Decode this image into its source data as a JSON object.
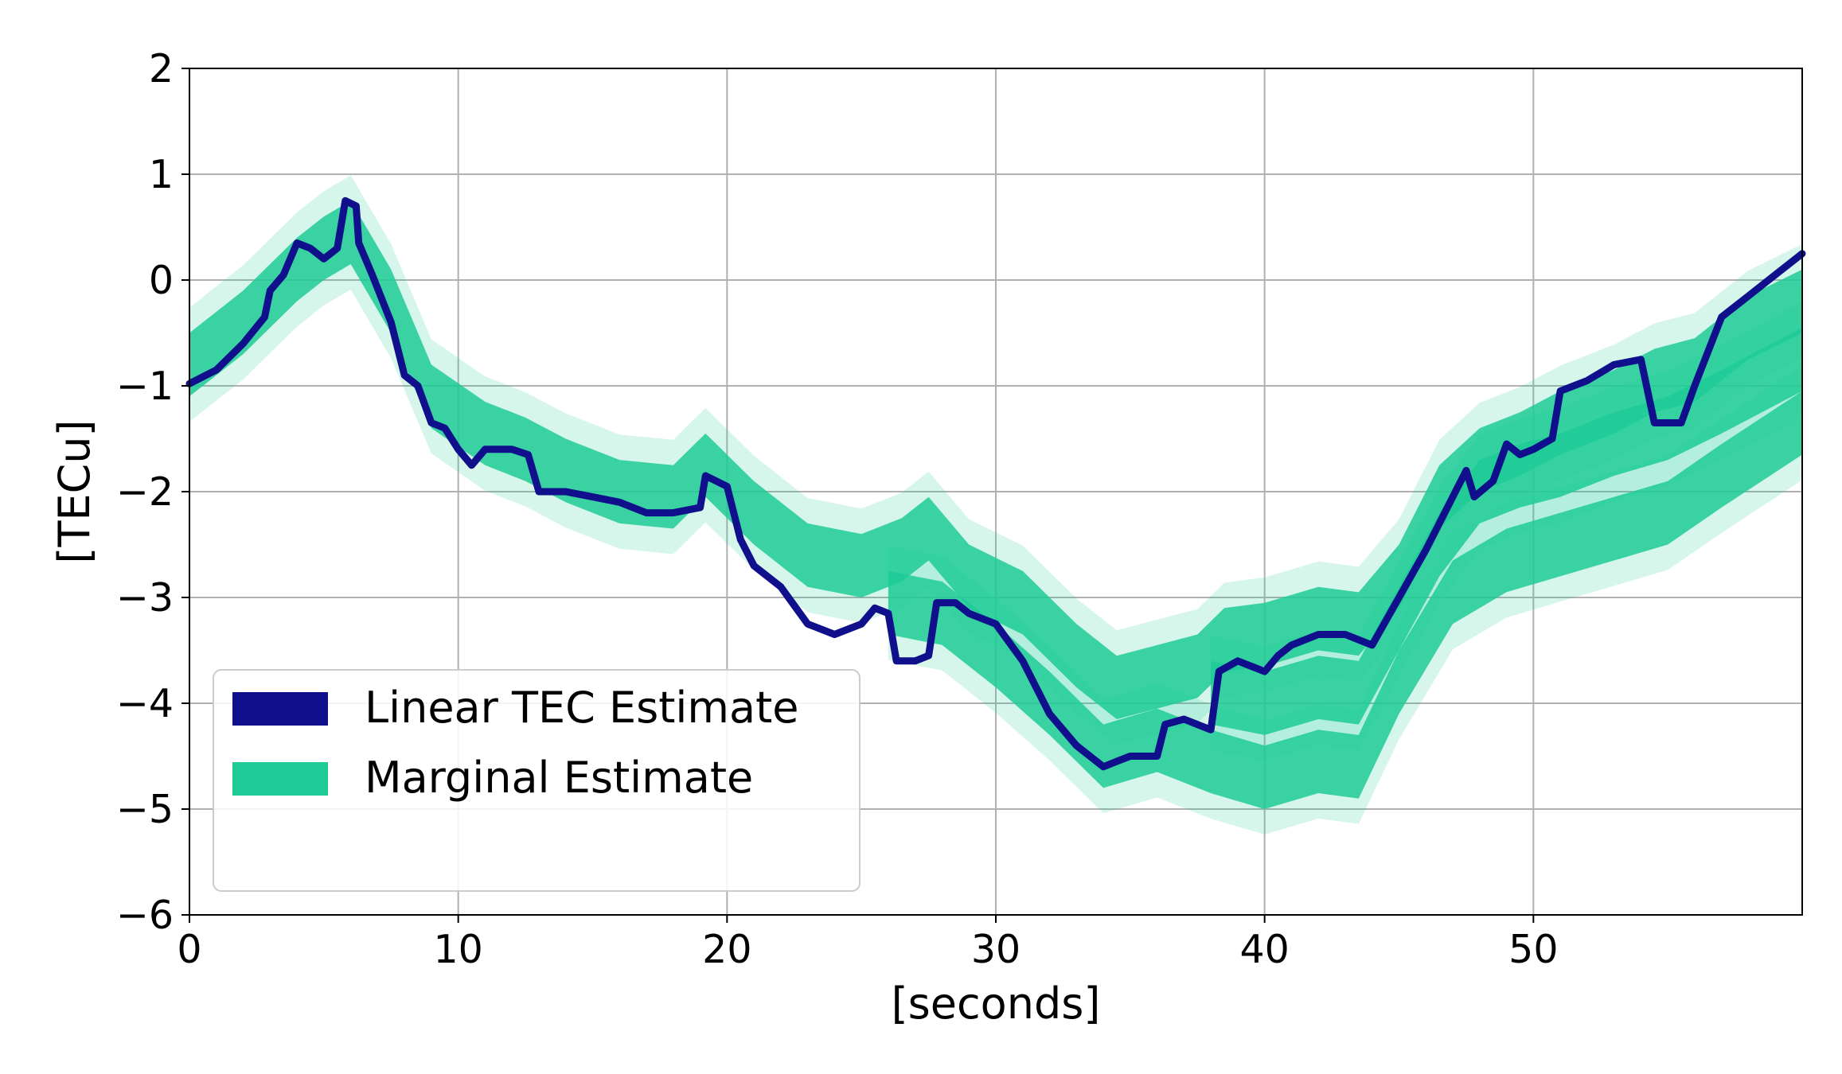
{
  "chart_data": {
    "type": "line",
    "title": "",
    "xlabel": "[seconds]",
    "ylabel": "[TECu]",
    "xlim": [
      0,
      60
    ],
    "ylim": [
      -6,
      2
    ],
    "grid": true,
    "x_ticks": [
      0,
      10,
      20,
      30,
      40,
      50
    ],
    "x_tick_labels": [
      "0",
      "10",
      "20",
      "30",
      "40",
      "50"
    ],
    "y_ticks": [
      2,
      1,
      0,
      -1,
      -2,
      -3,
      -4,
      -5,
      -6
    ],
    "y_tick_labels": [
      "2",
      "1",
      "0",
      "−1",
      "−2",
      "−3",
      "−4",
      "−5",
      "−6"
    ],
    "legend": {
      "placement": "lower-left",
      "entries": [
        {
          "label": "Linear TEC Estimate",
          "color": "#10108c"
        },
        {
          "label": "Marginal Estimate",
          "color": "#1ecb97"
        }
      ]
    },
    "series": [
      {
        "name": "Linear TEC Estimate",
        "color": "#10108c",
        "points": [
          [
            0,
            -0.98
          ],
          [
            1,
            -0.85
          ],
          [
            2,
            -0.6
          ],
          [
            2.8,
            -0.35
          ],
          [
            3,
            -0.1
          ],
          [
            3.5,
            0.05
          ],
          [
            4,
            0.35
          ],
          [
            4.5,
            0.3
          ],
          [
            5,
            0.2
          ],
          [
            5.5,
            0.3
          ],
          [
            5.8,
            0.75
          ],
          [
            6.2,
            0.7
          ],
          [
            6.3,
            0.35
          ],
          [
            6.8,
            0.05
          ],
          [
            7.5,
            -0.4
          ],
          [
            8,
            -0.9
          ],
          [
            8.5,
            -1.0
          ],
          [
            9,
            -1.35
          ],
          [
            9.5,
            -1.4
          ],
          [
            10,
            -1.6
          ],
          [
            10.5,
            -1.75
          ],
          [
            11,
            -1.6
          ],
          [
            12,
            -1.6
          ],
          [
            12.6,
            -1.65
          ],
          [
            13,
            -2.0
          ],
          [
            14,
            -2.0
          ],
          [
            15,
            -2.05
          ],
          [
            16,
            -2.1
          ],
          [
            17,
            -2.2
          ],
          [
            18,
            -2.2
          ],
          [
            19,
            -2.15
          ],
          [
            19.2,
            -1.85
          ],
          [
            20,
            -1.95
          ],
          [
            20.5,
            -2.45
          ],
          [
            21,
            -2.7
          ],
          [
            22,
            -2.9
          ],
          [
            23,
            -3.25
          ],
          [
            24,
            -3.35
          ],
          [
            25,
            -3.25
          ],
          [
            25.5,
            -3.1
          ],
          [
            26,
            -3.15
          ],
          [
            26.3,
            -3.6
          ],
          [
            27,
            -3.6
          ],
          [
            27.5,
            -3.55
          ],
          [
            27.8,
            -3.05
          ],
          [
            28.5,
            -3.05
          ],
          [
            29,
            -3.15
          ],
          [
            30,
            -3.25
          ],
          [
            31,
            -3.6
          ],
          [
            32,
            -4.1
          ],
          [
            33,
            -4.4
          ],
          [
            34,
            -4.6
          ],
          [
            34.5,
            -4.55
          ],
          [
            35,
            -4.5
          ],
          [
            36,
            -4.5
          ],
          [
            36.3,
            -4.2
          ],
          [
            37,
            -4.15
          ],
          [
            38,
            -4.25
          ],
          [
            38.3,
            -3.7
          ],
          [
            39,
            -3.6
          ],
          [
            40,
            -3.7
          ],
          [
            40.5,
            -3.55
          ],
          [
            41,
            -3.45
          ],
          [
            42,
            -3.35
          ],
          [
            43,
            -3.35
          ],
          [
            44,
            -3.45
          ],
          [
            45,
            -3.0
          ],
          [
            46,
            -2.55
          ],
          [
            47,
            -2.05
          ],
          [
            47.5,
            -1.8
          ],
          [
            47.8,
            -2.05
          ],
          [
            48.5,
            -1.9
          ],
          [
            49,
            -1.55
          ],
          [
            49.5,
            -1.65
          ],
          [
            50,
            -1.6
          ],
          [
            50.7,
            -1.5
          ],
          [
            51,
            -1.05
          ],
          [
            52,
            -0.95
          ],
          [
            53,
            -0.8
          ],
          [
            54,
            -0.75
          ],
          [
            54.5,
            -1.35
          ],
          [
            55.5,
            -1.35
          ],
          [
            56,
            -1.0
          ],
          [
            57,
            -0.35
          ],
          [
            58,
            -0.15
          ],
          [
            59,
            0.05
          ],
          [
            60,
            0.25
          ]
        ]
      },
      {
        "name": "Marginal Estimate",
        "color": "#1ecb97",
        "bands": [
          {
            "center": [
              [
                0,
                -0.8
              ],
              [
                2,
                -0.4
              ],
              [
                4,
                0.1
              ],
              [
                5,
                0.3
              ],
              [
                6,
                0.45
              ],
              [
                7.5,
                -0.2
              ],
              [
                9,
                -1.1
              ],
              [
                11,
                -1.45
              ],
              [
                12.5,
                -1.6
              ],
              [
                14,
                -1.8
              ],
              [
                16,
                -2.0
              ],
              [
                18,
                -2.05
              ],
              [
                19.2,
                -1.75
              ],
              [
                21,
                -2.2
              ],
              [
                23,
                -2.6
              ],
              [
                25,
                -2.7
              ],
              [
                26.5,
                -2.55
              ],
              [
                27.5,
                -2.35
              ],
              [
                29,
                -2.8
              ],
              [
                31,
                -3.05
              ],
              [
                33,
                -3.55
              ],
              [
                34.5,
                -3.85
              ],
              [
                36,
                -3.75
              ],
              [
                37.5,
                -3.65
              ],
              [
                38.5,
                -3.4
              ],
              [
                40,
                -3.35
              ],
              [
                42,
                -3.2
              ],
              [
                43.5,
                -3.25
              ],
              [
                45,
                -2.8
              ],
              [
                46.5,
                -2.05
              ],
              [
                48,
                -1.7
              ],
              [
                49.5,
                -1.55
              ],
              [
                51,
                -1.35
              ],
              [
                53,
                -1.15
              ],
              [
                54.5,
                -0.95
              ],
              [
                56,
                -0.85
              ],
              [
                58,
                -0.45
              ],
              [
                60,
                -0.2
              ]
            ],
            "half_width": 0.3
          },
          {
            "center": [
              [
                38,
                -3.9
              ],
              [
                40,
                -4.0
              ],
              [
                42,
                -3.85
              ],
              [
                43.5,
                -3.9
              ],
              [
                45,
                -3.2
              ],
              [
                46.5,
                -2.5
              ],
              [
                48,
                -2.0
              ],
              [
                49.5,
                -1.85
              ],
              [
                51,
                -1.75
              ],
              [
                53,
                -1.55
              ],
              [
                55,
                -1.4
              ],
              [
                57,
                -1.15
              ],
              [
                60,
                -0.75
              ]
            ],
            "half_width": 0.3
          },
          {
            "center": [
              [
                26,
                -3.05
              ],
              [
                28,
                -3.15
              ],
              [
                30,
                -3.55
              ],
              [
                32,
                -4.0
              ],
              [
                34,
                -4.5
              ],
              [
                36,
                -4.35
              ],
              [
                38,
                -4.55
              ],
              [
                40,
                -4.7
              ],
              [
                42,
                -4.55
              ],
              [
                43.5,
                -4.6
              ],
              [
                45,
                -3.8
              ],
              [
                47,
                -2.95
              ],
              [
                49,
                -2.65
              ],
              [
                51,
                -2.5
              ],
              [
                53,
                -2.35
              ],
              [
                55,
                -2.2
              ],
              [
                57,
                -1.85
              ],
              [
                60,
                -1.35
              ]
            ],
            "half_width": 0.3
          }
        ]
      }
    ]
  }
}
